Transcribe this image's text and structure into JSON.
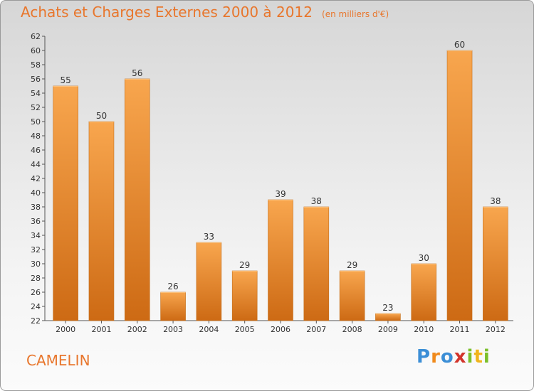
{
  "chart_data": {
    "type": "bar",
    "title": "Achats et Charges Externes 2000 à 2012",
    "unit": "(en milliers d'€)",
    "categories": [
      "2000",
      "2001",
      "2002",
      "2003",
      "2004",
      "2005",
      "2006",
      "2007",
      "2008",
      "2009",
      "2010",
      "2011",
      "2012"
    ],
    "values": [
      55,
      50,
      56,
      26,
      33,
      29,
      39,
      38,
      29,
      23,
      30,
      60,
      38
    ],
    "ylim": [
      22,
      62
    ],
    "ytick_step": 2,
    "grid": false,
    "bar_color": "#f0953a"
  },
  "footer": {
    "commune": "CAMELIN",
    "logo": "Proxiti"
  },
  "colors": {
    "title": "#e8762c",
    "commune": "#e8762c",
    "bar_light": "#f8a64e",
    "bar_dark": "#cd6a14"
  }
}
